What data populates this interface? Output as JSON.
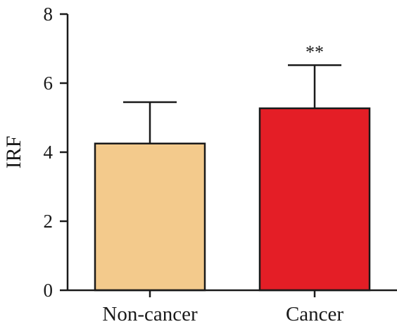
{
  "chart_data": {
    "type": "bar",
    "categories": [
      "Non-cancer",
      "Cancer"
    ],
    "values": [
      4.25,
      5.27
    ],
    "error_upper": [
      1.2,
      1.25
    ],
    "bar_colors": [
      "#f3ca8c",
      "#e41e26"
    ],
    "significance": [
      "",
      "**"
    ],
    "title": "",
    "xlabel": "",
    "ylabel": "IRF",
    "ylim": [
      0,
      8
    ],
    "yticks": [
      0,
      2,
      4,
      6,
      8
    ],
    "grid": false,
    "legend": "none"
  }
}
